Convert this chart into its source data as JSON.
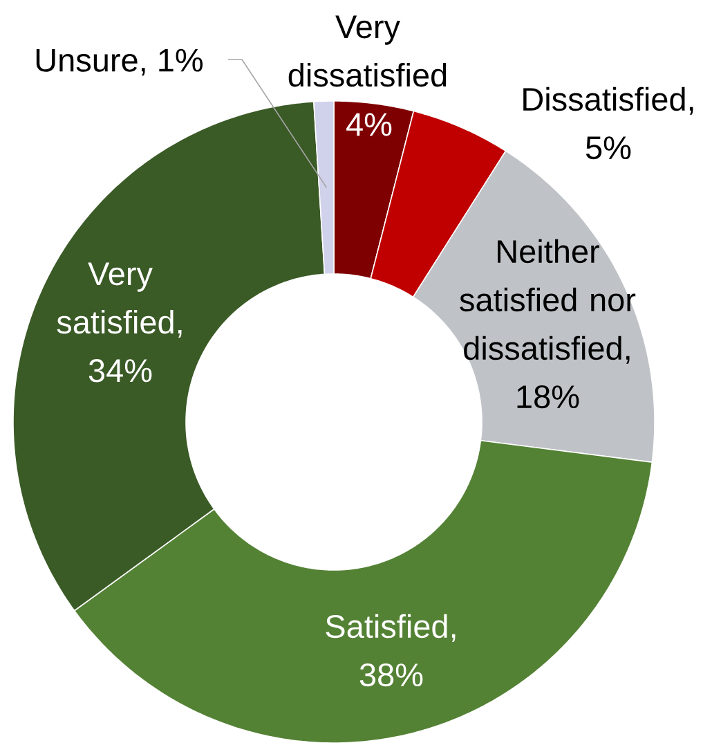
{
  "chart_data": {
    "type": "donut",
    "categories": [
      "Very dissatisfied",
      "Dissatisfied, 5%",
      "Neither satisfied nor dissatisfied, 18%",
      "Satisfied, 38%",
      "Very satisfied, 34%",
      "Unsure, 1%"
    ],
    "values": [
      4,
      5,
      18,
      38,
      34,
      1
    ],
    "value_labels": [
      "4%",
      null,
      null,
      null,
      null,
      null
    ],
    "colors": [
      "#7f0000",
      "#c00000",
      "#bfc3c7",
      "#548235",
      "#3a5a26",
      "#d0d1ea"
    ]
  }
}
